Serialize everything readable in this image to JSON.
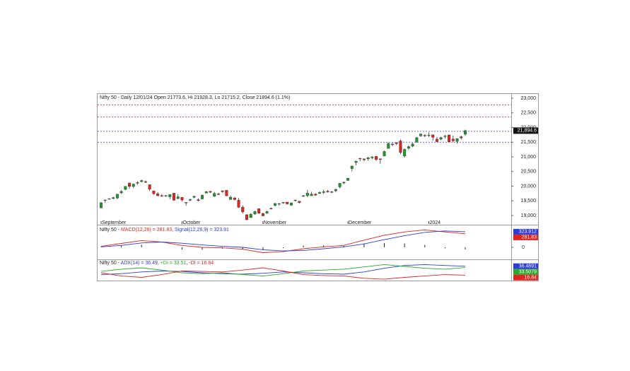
{
  "chart_data": [
    {
      "type": "candlestick",
      "title": "Nifty 50 - Daily 12/01/24 Open 21773.6, Hi 21928.3, Lo 21715.2, Close 21894.6 (1.1%)",
      "categories": [
        "September",
        null,
        null,
        null,
        null,
        null,
        null,
        null,
        null,
        null,
        null,
        null,
        null,
        null,
        null,
        null,
        null,
        null,
        null,
        null,
        "October",
        null,
        null,
        null,
        null,
        null,
        null,
        null,
        null,
        null,
        null,
        null,
        null,
        null,
        null,
        null,
        null,
        null,
        null,
        null,
        "November",
        null,
        null,
        null,
        null,
        null,
        null,
        null,
        null,
        null,
        null,
        null,
        null,
        null,
        null,
        null,
        null,
        null,
        null,
        null,
        null,
        "December",
        null,
        null,
        null,
        null,
        null,
        null,
        null,
        null,
        null,
        null,
        null,
        null,
        null,
        null,
        null,
        null,
        null,
        null,
        null,
        "2024",
        null,
        null,
        null,
        null,
        null,
        null,
        null,
        null,
        null
      ],
      "open": [
        19258,
        19525,
        19564,
        19580,
        19598,
        19775,
        19890,
        20110,
        19989,
        20127,
        20156,
        20156,
        20050,
        19840,
        19744,
        19679,
        19682,
        19638,
        19761,
        19581,
        19622,
        19446,
        19521,
        19621,
        19539,
        19565,
        19767,
        19822,
        19654,
        19737,
        19844,
        19862,
        19545,
        19598,
        19521,
        19286,
        19027,
        18928,
        19054,
        19232,
        19064,
        19080,
        19241,
        19345,
        19404,
        19449,
        19457,
        19351,
        19526,
        19486,
        19651,
        19674,
        19674,
        19731,
        19754,
        19784,
        19828,
        19809,
        19844,
        19976,
        20108,
        20195,
        20601,
        20808,
        20950,
        20932,
        20934,
        20966,
        21019,
        20930,
        21033,
        21287,
        21434,
        21477,
        21543,
        21033,
        21295,
        21365,
        21497,
        21715,
        21737,
        21727,
        21752,
        21605,
        21605,
        21706,
        21747,
        21605,
        21529,
        21688,
        21773.6
      ],
      "high": [
        19458,
        19545,
        19587,
        19637,
        19737,
        19867,
        19995,
        20110,
        20096,
        20167,
        20222,
        20195,
        20058,
        19848,
        19798,
        19734,
        19699,
        19730,
        19766,
        19726,
        19623,
        19457,
        19576,
        19675,
        19588,
        19717,
        19839,
        19843,
        19805,
        19781,
        19849,
        19862,
        19681,
        19635,
        19593,
        19347,
        19041,
        19076,
        19158,
        19233,
        19096,
        19175,
        19276,
        19423,
        19423,
        19464,
        19464,
        19451,
        19547,
        19494,
        19693,
        19875,
        19806,
        19757,
        19829,
        19875,
        19876,
        19832,
        19916,
        20104,
        20158,
        20291,
        20702,
        20864,
        20962,
        20941,
        21006,
        21026,
        21037,
        20950,
        21210,
        21493,
        21482,
        21505,
        21593,
        21288,
        21390,
        21477,
        21676,
        21802,
        21770,
        21835,
        21755,
        21677,
        21685,
        21750,
        21763,
        21724,
        21641,
        21726,
        21928.3
      ],
      "low": [
        19255,
        19433,
        19543,
        19551,
        19560,
        19727,
        19865,
        19914,
        19935,
        20044,
        20129,
        20115,
        19840,
        19709,
        19658,
        19637,
        19636,
        19554,
        19492,
        19551,
        19479,
        19333,
        19487,
        19589,
        19480,
        19565,
        19756,
        19772,
        19635,
        19691,
        19775,
        19659,
        19536,
        19518,
        19255,
        19074,
        18838,
        18926,
        19024,
        19056,
        18973,
        19064,
        19210,
        19309,
        19329,
        19401,
        19378,
        19329,
        19479,
        19414,
        19651,
        19627,
        19667,
        19670,
        19735,
        19728,
        19784,
        19768,
        19801,
        19926,
        20070,
        20183,
        20507,
        20711,
        20852,
        20850,
        20863,
        20923,
        20867,
        20769,
        21020,
        21287,
        21365,
        21400,
        21087,
        20976,
        21232,
        21329,
        21495,
        21681,
        21677,
        21681,
        21555,
        21500,
        21564,
        21630,
        21493,
        21500,
        21449,
        21593,
        21715.2
      ],
      "close": [
        19435,
        19528,
        19575,
        19611,
        19727,
        19820,
        19996,
        19993,
        20070,
        20103,
        20192,
        20133,
        19901,
        19742,
        19674,
        19675,
        19665,
        19716,
        19524,
        19638,
        19529,
        19436,
        19545,
        19654,
        19512,
        19690,
        19811,
        19794,
        19751,
        19732,
        19812,
        19671,
        19625,
        19542,
        19281,
        19122,
        18857,
        19047,
        19141,
        19080,
        18989,
        19133,
        19231,
        19411,
        19407,
        19444,
        19395,
        19425,
        19525,
        19443,
        19676,
        19765,
        19732,
        19694,
        19784,
        19811,
        19802,
        19795,
        19890,
        20097,
        20133,
        20268,
        20687,
        20855,
        20937,
        20901,
        20969,
        20997,
        20906,
        20926,
        21183,
        21457,
        21419,
        21453,
        21150,
        21255,
        21349,
        21441,
        21655,
        21779,
        21731,
        21742,
        21666,
        21518,
        21659,
        21711,
        21514,
        21545,
        21619,
        21647,
        21894.6
      ],
      "up_color": "#1e9a2a",
      "down_color": "#e0231e",
      "ylim": [
        18710,
        23145
      ],
      "yticks": [
        {
          "value": 19000,
          "label": "19,000"
        },
        {
          "value": 19500,
          "label": "19,500"
        },
        {
          "value": 20000,
          "label": "20,000"
        },
        {
          "value": 20500,
          "label": "20,500"
        },
        {
          "value": 21000,
          "label": "21,000"
        },
        {
          "value": 21500,
          "label": "21,500"
        },
        {
          "value": 22000,
          "label": "22,000"
        },
        {
          "value": 22500,
          "label": "22,500"
        },
        {
          "value": 23000,
          "label": "23,000"
        }
      ],
      "levels": [
        {
          "value": 22770,
          "color": "#e2403a"
        },
        {
          "value": 22360,
          "color": "#e2403a"
        },
        {
          "value": 21870,
          "color": "#3a44d8"
        },
        {
          "value": 21500,
          "color": "#3a44d8"
        }
      ],
      "last": {
        "value": 21894.6,
        "label": "21,894.6"
      }
    },
    {
      "type": "macd",
      "title": "Nifty 50 - ",
      "separator": ", ",
      "x": [
        0,
        5,
        10,
        15,
        20,
        25,
        30,
        35,
        40,
        45,
        50,
        55,
        60,
        65,
        70,
        75,
        80,
        85,
        90
      ],
      "series": [
        {
          "name": "MACD(12,26) = 281.83",
          "color": "#e0231e",
          "values": [
            20,
            80,
            140,
            110,
            40,
            0,
            -10,
            -40,
            -110,
            -90,
            -30,
            10,
            40,
            150,
            250,
            320,
            360,
            320,
            281.83
          ],
          "last_label": "281.83"
        },
        {
          "name": "Signal(12,26,9) = 323.91",
          "color": "#2b3bd6",
          "values": [
            10,
            40,
            90,
            110,
            85,
            50,
            20,
            0,
            -50,
            -75,
            -65,
            -30,
            10,
            70,
            160,
            240,
            310,
            340,
            323.912
          ],
          "last_label": "323.912"
        }
      ],
      "histogram": {
        "color": "#222222",
        "values": [
          10,
          40,
          50,
          0,
          -45,
          -50,
          -30,
          -40,
          -60,
          -15,
          35,
          40,
          30,
          80,
          90,
          80,
          50,
          -20,
          -42.082
        ]
      },
      "ylim": [
        -235,
        425
      ],
      "yticks": [
        0
      ]
    },
    {
      "type": "adx",
      "title": "Nifty 50 - ",
      "separator": ", ",
      "x": [
        0,
        5,
        10,
        15,
        20,
        25,
        30,
        35,
        40,
        45,
        50,
        55,
        60,
        65,
        70,
        75,
        80,
        85,
        90
      ],
      "series": [
        {
          "name": "ADX(14) = 36.49",
          "color": "#2b3bd6",
          "values": [
            18,
            20,
            24,
            26,
            25,
            22,
            20,
            19,
            21,
            24,
            22,
            20,
            19,
            24,
            32,
            38,
            40,
            38,
            36.4891
          ],
          "last_label": "36.4891"
        },
        {
          "name": "+DI = 33.51",
          "color": "#2aa82a",
          "values": [
            25,
            30,
            33,
            28,
            22,
            20,
            22,
            18,
            15,
            20,
            26,
            28,
            30,
            35,
            40,
            36,
            32,
            30,
            33.5079
          ],
          "last_label": "33.5079"
        },
        {
          "name": "-DI = 16.84",
          "color": "#e0231e",
          "values": [
            22,
            15,
            12,
            18,
            26,
            25,
            24,
            28,
            33,
            26,
            18,
            16,
            15,
            10,
            8,
            12,
            15,
            18,
            16.84
          ],
          "last_label": "16.84"
        }
      ],
      "ylim": [
        5,
        50
      ]
    }
  ]
}
